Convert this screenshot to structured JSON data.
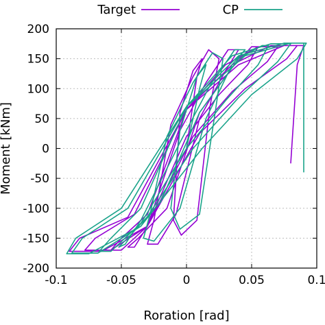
{
  "chart_data": {
    "type": "line",
    "title": "",
    "xlabel": "Roration [rad]",
    "ylabel": "Moment [kNm]",
    "xlim": [
      -0.1,
      0.1
    ],
    "ylim": [
      -200,
      200
    ],
    "xticks": [
      -0.1,
      -0.05,
      0,
      0.05,
      0.1
    ],
    "xtick_labels": [
      "-0.1",
      "-0.05",
      "0",
      "0.05",
      "0.1"
    ],
    "yticks": [
      -200,
      -150,
      -100,
      -50,
      0,
      50,
      100,
      150,
      200
    ],
    "ytick_labels": [
      "-200",
      "-150",
      "-100",
      "-50",
      "0",
      "50",
      "100",
      "150",
      "200"
    ],
    "grid": true,
    "legend": "top",
    "series": [
      {
        "name": "Target",
        "color": "#9400d3",
        "x": [
          0,
          0.008,
          0.012,
          0.005,
          -0.005,
          -0.01,
          -0.004,
          0.008,
          0.018,
          0.025,
          0.017,
          0.005,
          -0.012,
          -0.025,
          -0.03,
          -0.022,
          -0.008,
          0.01,
          0.03,
          0.04,
          0.032,
          0.015,
          -0.005,
          -0.03,
          -0.04,
          -0.045,
          -0.037,
          -0.015,
          0.01,
          0.035,
          0.05,
          0.055,
          0.047,
          0.025,
          0,
          -0.03,
          -0.05,
          -0.058,
          -0.05,
          -0.03,
          0,
          0.03,
          0.055,
          0.065,
          0.07,
          0.062,
          0.035,
          0.005,
          -0.03,
          -0.058,
          -0.072,
          -0.078,
          -0.07,
          -0.04,
          0,
          0.035,
          0.065,
          0.08,
          0.085,
          0.077,
          0.045,
          0.01,
          -0.03,
          -0.065,
          -0.085,
          -0.09,
          -0.082,
          -0.045,
          0,
          0.04,
          0.075,
          0.09,
          0.085,
          0.08
        ],
        "y": [
          0,
          120,
          150,
          130,
          60,
          -120,
          -145,
          -120,
          70,
          150,
          165,
          120,
          40,
          -120,
          -160,
          -160,
          -110,
          50,
          130,
          165,
          165,
          110,
          30,
          -130,
          -165,
          -165,
          -150,
          -100,
          60,
          135,
          170,
          170,
          140,
          90,
          20,
          -130,
          -170,
          -170,
          -150,
          -110,
          65,
          140,
          170,
          170,
          170,
          145,
          95,
          20,
          -130,
          -170,
          -170,
          -170,
          -150,
          -110,
          65,
          140,
          172,
          172,
          172,
          150,
          100,
          25,
          -130,
          -172,
          -172,
          -172,
          -150,
          -115,
          65,
          140,
          172,
          172,
          140,
          -25
        ]
      },
      {
        "name": "CP",
        "color": "#1aa38a",
        "x": [
          0,
          0.01,
          0.015,
          0.008,
          -0.005,
          -0.012,
          -0.005,
          0.01,
          0.022,
          0.028,
          0.02,
          0.005,
          -0.015,
          -0.028,
          -0.033,
          -0.025,
          -0.005,
          0.015,
          0.035,
          0.045,
          0.037,
          0.018,
          -0.005,
          -0.035,
          -0.047,
          -0.052,
          -0.043,
          -0.02,
          0.01,
          0.04,
          0.058,
          0.063,
          0.055,
          0.03,
          0,
          -0.035,
          -0.058,
          -0.067,
          -0.058,
          -0.035,
          0,
          0.035,
          0.065,
          0.075,
          0.08,
          0.07,
          0.04,
          0.005,
          -0.035,
          -0.068,
          -0.082,
          -0.088,
          -0.08,
          -0.045,
          0,
          0.04,
          0.075,
          0.088,
          0.092,
          0.085,
          0.05,
          0.012,
          -0.035,
          -0.075,
          -0.09,
          -0.092,
          -0.085,
          -0.05,
          0,
          0.045,
          0.08,
          0.09,
          0.09
        ],
        "y": [
          0,
          100,
          140,
          120,
          30,
          -100,
          -135,
          -110,
          60,
          150,
          160,
          110,
          20,
          -110,
          -150,
          -155,
          -100,
          50,
          140,
          165,
          165,
          105,
          10,
          -120,
          -160,
          -165,
          -145,
          -90,
          60,
          150,
          172,
          172,
          140,
          80,
          0,
          -125,
          -172,
          -172,
          -150,
          -100,
          70,
          155,
          175,
          175,
          175,
          145,
          85,
          0,
          -130,
          -175,
          -175,
          -175,
          -150,
          -100,
          70,
          155,
          176,
          176,
          176,
          150,
          90,
          0,
          -130,
          -176,
          -176,
          -176,
          -150,
          -100,
          70,
          155,
          176,
          176,
          -40
        ]
      }
    ]
  }
}
